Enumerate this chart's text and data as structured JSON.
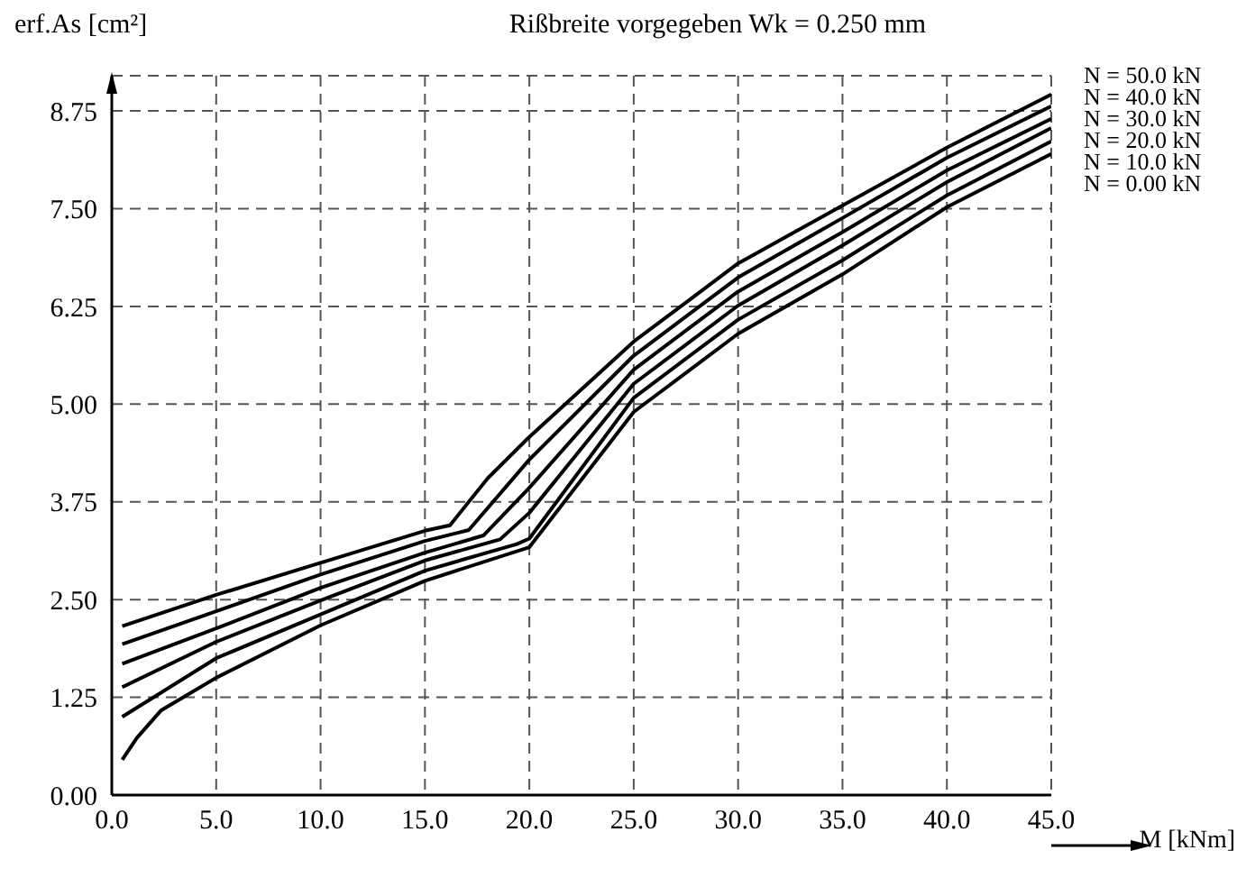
{
  "chart_data": {
    "type": "line",
    "title": "Rißbreite vorgegeben Wk = 0.250 mm",
    "xlabel": "M [kNm]",
    "ylabel": "erf.As [cm²]",
    "xlim": [
      0,
      45
    ],
    "ylim": [
      0,
      9.2
    ],
    "xticks": [
      {
        "value": 0,
        "label": "0.0"
      },
      {
        "value": 5,
        "label": "5.0"
      },
      {
        "value": 10,
        "label": "10.0"
      },
      {
        "value": 15,
        "label": "15.0"
      },
      {
        "value": 20,
        "label": "20.0"
      },
      {
        "value": 25,
        "label": "25.0"
      },
      {
        "value": 30,
        "label": "30.0"
      },
      {
        "value": 35,
        "label": "35.0"
      },
      {
        "value": 40,
        "label": "40.0"
      },
      {
        "value": 45,
        "label": "45.0"
      }
    ],
    "yticks": [
      {
        "value": 0,
        "label": "0.00"
      },
      1.25,
      {
        "value": 2.5,
        "label": "2.50"
      },
      3.75,
      {
        "value": 5,
        "label": "5.00"
      },
      6.25,
      {
        "value": 7.5,
        "label": "7.50"
      },
      8.75
    ],
    "grid": true,
    "legend": "top right",
    "marker": "none",
    "line_style": "solid",
    "series": [
      {
        "name": "N = 50.0 kN",
        "color": "#000000",
        "x": [
          0.5,
          5,
          10,
          15,
          16.2,
          18,
          20,
          25,
          30,
          35,
          40,
          45
        ],
        "values": [
          2.16,
          2.56,
          2.97,
          3.38,
          3.45,
          4.05,
          4.58,
          5.8,
          6.8,
          7.54,
          8.28,
          8.96
        ]
      },
      {
        "name": "N = 40.0 kN",
        "color": "#000000",
        "x": [
          0.5,
          5,
          10,
          15,
          17.1,
          20,
          25,
          30,
          35,
          40,
          45
        ],
        "values": [
          1.93,
          2.35,
          2.82,
          3.25,
          3.39,
          4.29,
          5.62,
          6.62,
          7.38,
          8.15,
          8.81
        ]
      },
      {
        "name": "N = 30.0 kN",
        "color": "#000000",
        "x": [
          0.5,
          5,
          10,
          15,
          17.8,
          20,
          25,
          30,
          35,
          40,
          45
        ],
        "values": [
          1.68,
          2.13,
          2.65,
          3.1,
          3.32,
          3.93,
          5.44,
          6.44,
          7.2,
          7.99,
          8.65
        ]
      },
      {
        "name": "N = 20.0 kN",
        "color": "#000000",
        "x": [
          0.5,
          5,
          10,
          15,
          18.6,
          20,
          25,
          30,
          35,
          40,
          45
        ],
        "values": [
          1.38,
          1.96,
          2.49,
          3.0,
          3.27,
          3.61,
          5.26,
          6.26,
          7.03,
          7.84,
          8.53
        ]
      },
      {
        "name": "N = 10.0 kN",
        "color": "#000000",
        "x": [
          0.5,
          5,
          10,
          15,
          19.4,
          20,
          25,
          30,
          35,
          40,
          45
        ],
        "values": [
          1.0,
          1.75,
          2.31,
          2.87,
          3.21,
          3.28,
          5.08,
          6.08,
          6.84,
          7.67,
          8.36
        ]
      },
      {
        "name": "N = 0.00 kN",
        "color": "#000000",
        "x": [
          0.5,
          1.2,
          2.35,
          5,
          10,
          15,
          20,
          25,
          30,
          35,
          40,
          45
        ],
        "values": [
          0.45,
          0.73,
          1.08,
          1.5,
          2.17,
          2.74,
          3.17,
          4.9,
          5.9,
          6.66,
          7.52,
          8.2
        ]
      }
    ]
  }
}
